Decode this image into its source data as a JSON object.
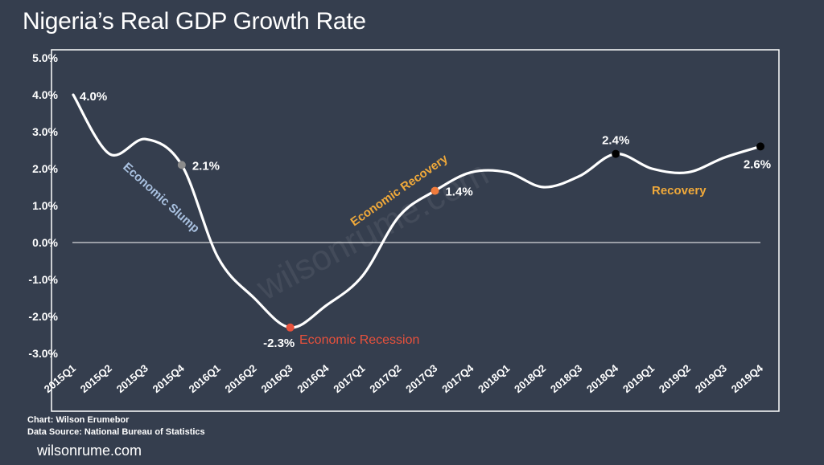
{
  "title": "Nigeria’s Real GDP Growth Rate",
  "credit_chart": "Chart: Wilson Erumebor",
  "credit_source": "Data Source: National Bureau of Statistics",
  "site": "wilsonrume.com",
  "watermark": "wilsonrume.com",
  "colors": {
    "background": "#353e4e",
    "line": "#ffffff",
    "slump": "#a9c1e0",
    "recession": "#e8513c",
    "recovery": "#f0a93a",
    "recovery_point": "#f07b3c",
    "grey_point": "#8c8c8c",
    "black_point": "#000000"
  },
  "chart_data": {
    "type": "line",
    "title": "Nigeria’s Real GDP Growth Rate",
    "categories": [
      "2015Q1",
      "2015Q2",
      "2015Q3",
      "2015Q4",
      "2016Q1",
      "2016Q2",
      "2016Q3",
      "2016Q4",
      "2017Q1",
      "2017Q2",
      "2017Q3",
      "2017Q4",
      "2018Q1",
      "2018Q2",
      "2018Q3",
      "2018Q4",
      "2019Q1",
      "2019Q2",
      "2019Q3",
      "2019Q4"
    ],
    "series": [
      {
        "values": [
          4.0,
          2.4,
          2.8,
          2.1,
          -0.4,
          -1.5,
          -2.3,
          -1.7,
          -0.9,
          0.7,
          1.4,
          1.9,
          1.9,
          1.5,
          1.8,
          2.4,
          2.0,
          1.9,
          2.3,
          2.6
        ]
      }
    ],
    "ylim": [
      -3.0,
      5.0
    ],
    "yticks": [
      "5.0%",
      "4.0%",
      "3.0%",
      "2.0%",
      "1.0%",
      "0.0%",
      "-1.0%",
      "-2.0%",
      "-3.0%"
    ],
    "xlabel": "",
    "ylabel": "",
    "point_labels": [
      {
        "index": 0,
        "text": "4.0%"
      },
      {
        "index": 3,
        "text": "2.1%"
      },
      {
        "index": 6,
        "text": "-2.3%"
      },
      {
        "index": 10,
        "text": "1.4%"
      },
      {
        "index": 15,
        "text": "2.4%"
      },
      {
        "index": 19,
        "text": "2.6%"
      }
    ],
    "annotations": {
      "slump": "Economic Slump",
      "recession": "Economic Recession",
      "economic_recovery": "Economic Recovery",
      "recovery": "Recovery"
    }
  }
}
